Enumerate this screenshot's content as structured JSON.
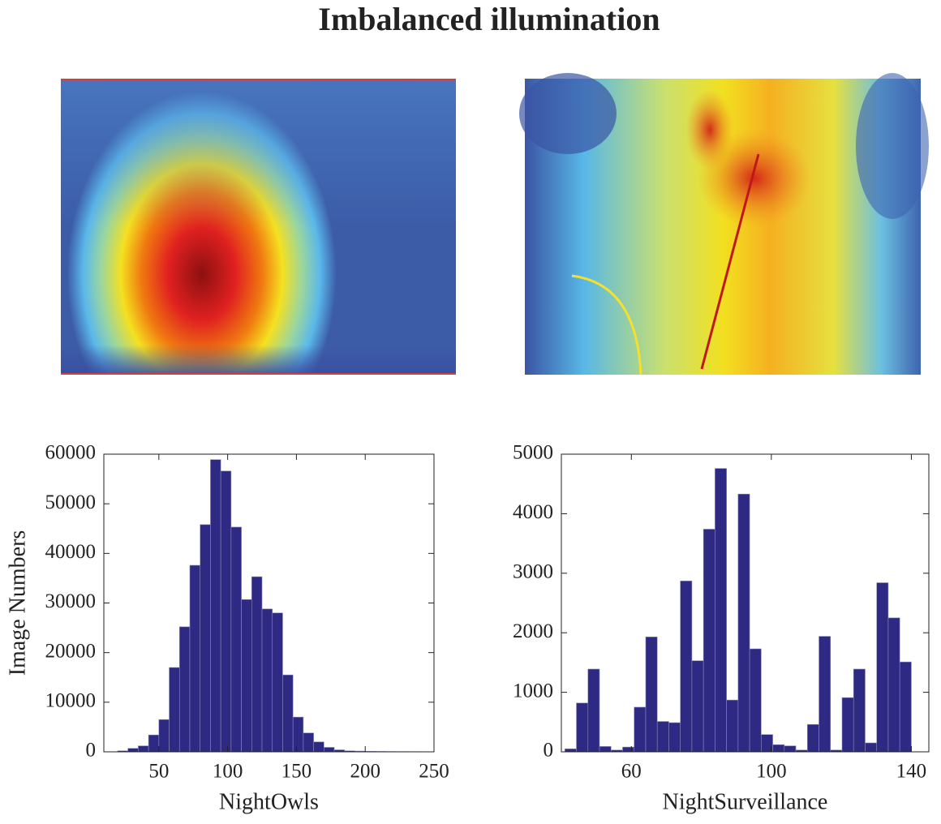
{
  "title": "Imbalanced illumination",
  "chart_data": [
    {
      "type": "histogram",
      "xlabel": "NightOwls",
      "ylabel": "Image Numbers",
      "color": "#2e2a84",
      "bins": [
        20,
        27.5,
        35,
        42.5,
        50,
        57.5,
        65,
        72.5,
        80,
        87.5,
        95,
        102.5,
        110,
        117.5,
        125,
        132.5,
        140,
        147.5,
        155,
        162.5,
        170,
        177.5,
        185,
        192.5,
        200,
        207.5,
        215,
        222.5,
        230,
        237.5,
        245
      ],
      "values": [
        200,
        700,
        1200,
        3400,
        6500,
        17000,
        25200,
        37600,
        45800,
        58900,
        56600,
        45300,
        30700,
        35300,
        28800,
        28000,
        15500,
        7000,
        3800,
        2000,
        900,
        400,
        200,
        150,
        100,
        80,
        60,
        50,
        40,
        30
      ],
      "xlim": [
        10,
        250
      ],
      "xticks": [
        50,
        100,
        150,
        200,
        250
      ],
      "ylim": [
        0,
        60000
      ],
      "yticks": [
        0,
        10000,
        20000,
        30000,
        40000,
        50000,
        60000
      ]
    },
    {
      "type": "histogram",
      "xlabel": "NightSurveillance",
      "color": "#2e2a84",
      "bins": [
        41,
        44.3,
        47.6,
        50.9,
        54.2,
        57.5,
        60.8,
        64.1,
        67.4,
        70.7,
        74,
        77.3,
        80.6,
        83.9,
        87.2,
        90.5,
        93.8,
        97.1,
        100.4,
        103.7,
        107,
        110.3,
        113.6,
        116.9,
        120.2,
        123.5,
        126.8,
        130.1,
        133.4,
        136.7,
        140
      ],
      "values": [
        50,
        820,
        1390,
        90,
        30,
        80,
        750,
        1930,
        510,
        490,
        2870,
        1530,
        3740,
        4760,
        870,
        4330,
        1730,
        290,
        120,
        100,
        30,
        460,
        1940,
        30,
        910,
        1390,
        150,
        2840,
        2250,
        1510
      ],
      "xlim": [
        40,
        145
      ],
      "xticks": [
        60,
        100,
        140
      ],
      "ylim": [
        0,
        5000
      ],
      "yticks": [
        0,
        1000,
        2000,
        3000,
        4000,
        5000
      ]
    }
  ]
}
